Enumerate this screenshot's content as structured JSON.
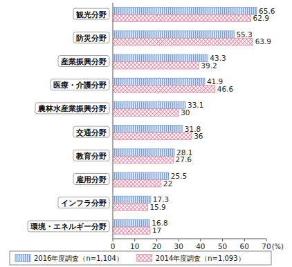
{
  "chart_data": {
    "type": "bar",
    "orientation": "horizontal",
    "categories": [
      "観光分野",
      "防災分野",
      "産業振興分野",
      "医療・介護分野",
      "農林水産業振興分野",
      "交通分野",
      "教育分野",
      "雇用分野",
      "インフラ分野",
      "環境・エネルギー分野"
    ],
    "series": [
      {
        "name": "2016年度調査（n=1,104）",
        "color": "#7a9fd4",
        "values": [
          65.6,
          55.3,
          43.3,
          41.9,
          33.1,
          31.8,
          28.1,
          25.5,
          17.3,
          16.8
        ]
      },
      {
        "name": "2014年度調査（n=1,093）",
        "color": "#e48aa6",
        "values": [
          62.9,
          63.9,
          39.2,
          46.6,
          30.0,
          36.0,
          27.6,
          22.0,
          15.9,
          17.0
        ]
      }
    ],
    "x_label": "(%)",
    "xlim": [
      0,
      70
    ],
    "xticks": [
      0,
      10,
      20,
      30,
      40,
      50,
      60,
      70
    ],
    "data_labels": true,
    "grid": false,
    "legend": "bottom"
  }
}
